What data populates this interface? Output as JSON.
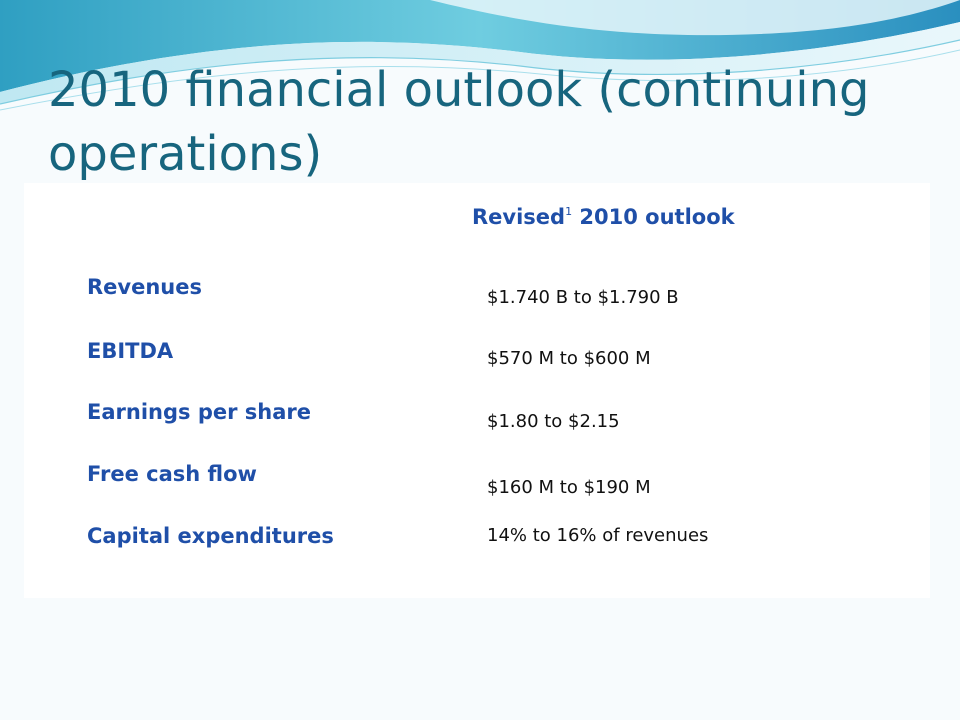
{
  "slide": {
    "title": "2010 financial outlook (continuing operations)",
    "colors": {
      "title": "#17657e",
      "labels": "#1f4fa8",
      "values": "#111111",
      "wave": "#5ec0d8"
    }
  },
  "table": {
    "header": {
      "text": "Revised",
      "footnote_marker": "1",
      "suffix": " 2010 outlook"
    },
    "rows": [
      {
        "label": "Revenues",
        "value": "$1.740 B to $1.790 B"
      },
      {
        "label": "EBITDA",
        "value": "$570 M to $600 M"
      },
      {
        "label": "Earnings per share",
        "value": "$1.80 to $2.15"
      },
      {
        "label": "Free cash flow",
        "value": "$160 M to $190 M"
      },
      {
        "label": "Capital expenditures",
        "value": "14% to 16% of revenues"
      }
    ]
  }
}
